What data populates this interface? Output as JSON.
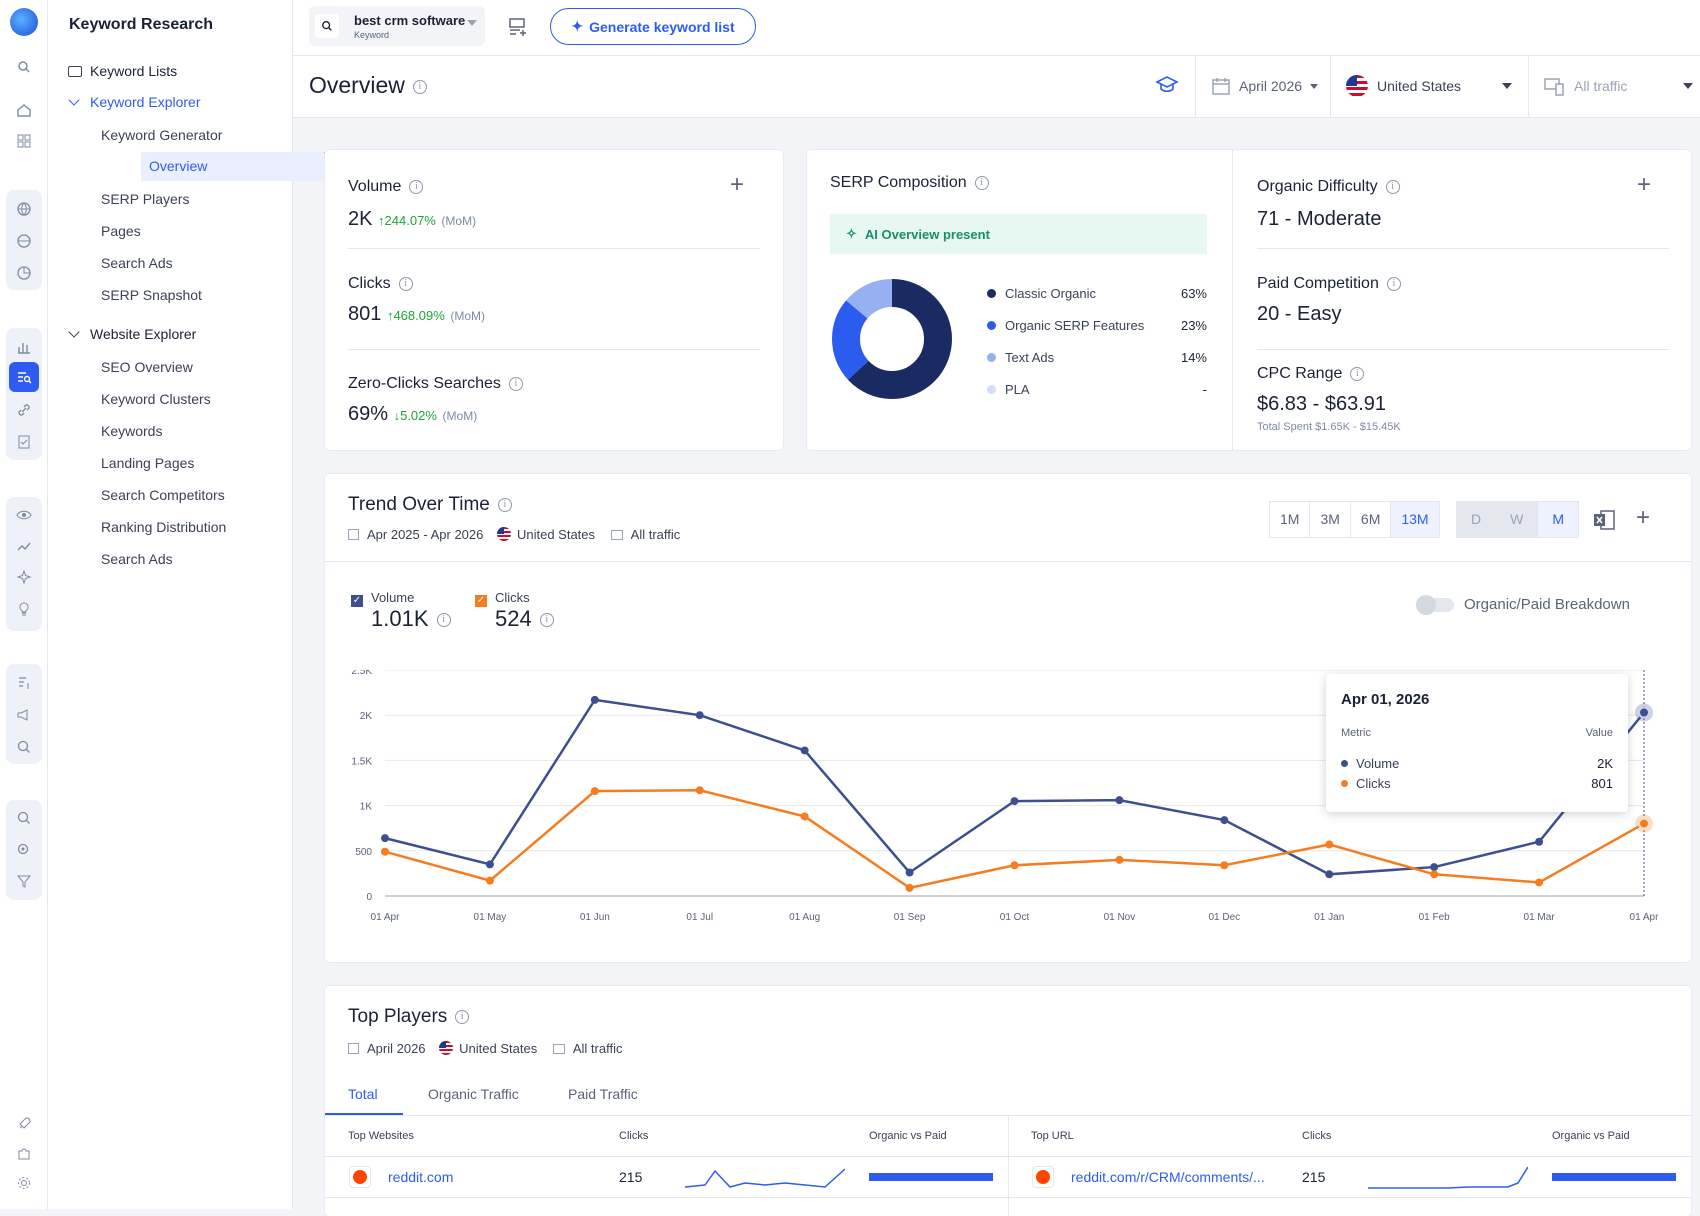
{
  "rail": {
    "icons": [
      "search-icon",
      "home-icon",
      "apps-icon",
      "globe-icon",
      "globe-search-icon",
      "pie-chart-icon",
      "bar-chart-icon",
      "keyword-research-icon",
      "link-icon",
      "checklist-icon",
      "eye-icon",
      "trend-icon",
      "sparkle-icon",
      "lightbulb-icon",
      "document-dollar-icon",
      "megaphone-icon",
      "search-ads-icon",
      "magnify-check-icon",
      "magnify-target-icon",
      "filter-icon",
      "rocket-icon",
      "puzzle-icon",
      "settings-icon"
    ]
  },
  "sidebar": {
    "title": "Keyword Research",
    "keyword_lists": "Keyword Lists",
    "keyword_explorer": "Keyword Explorer",
    "ke_items": [
      "Keyword Generator",
      "Overview",
      "SERP Players",
      "Pages",
      "Search Ads",
      "SERP Snapshot"
    ],
    "website_explorer": "Website Explorer",
    "we_items": [
      "SEO Overview",
      "Keyword Clusters",
      "Keywords",
      "Landing Pages",
      "Search Competitors",
      "Ranking Distribution",
      "Search Ads"
    ]
  },
  "topbar": {
    "keyword": "best crm software",
    "keyword_type": "Keyword",
    "generate": "Generate keyword list"
  },
  "header": {
    "title": "Overview",
    "date": "April 2026",
    "country": "United States",
    "traffic": "All traffic"
  },
  "volume": {
    "label": "Volume",
    "value": "2K",
    "change": "244.07%",
    "change_dir": "up",
    "period": "(MoM)"
  },
  "clicks": {
    "label": "Clicks",
    "value": "801",
    "change": "468.09%",
    "change_dir": "up",
    "period": "(MoM)"
  },
  "zero": {
    "label": "Zero-Clicks Searches",
    "value": "69%",
    "change": "5.02%",
    "change_dir": "down",
    "period": "(MoM)"
  },
  "serp": {
    "title": "SERP Composition",
    "ai": "AI Overview present",
    "items": [
      {
        "name": "Classic Organic",
        "pct": "63%",
        "value": 63,
        "color": "#1a2b63"
      },
      {
        "name": "Organic SERP Features",
        "pct": "23%",
        "value": 23,
        "color": "#2b5cf0"
      },
      {
        "name": "Text Ads",
        "pct": "14%",
        "value": 14,
        "color": "#97b0f4"
      },
      {
        "name": "PLA",
        "pct": "-",
        "value": 0,
        "color": "#d3defb"
      }
    ]
  },
  "difficulty": {
    "label": "Organic Difficulty",
    "value": "71 - Moderate"
  },
  "paid": {
    "label": "Paid Competition",
    "value": "20 - Easy"
  },
  "cpc": {
    "label": "CPC Range",
    "value": "$6.83 - $63.91",
    "spent": "Total Spent $1.65K - $15.45K"
  },
  "trend": {
    "title": "Trend Over Time",
    "range": "Apr 2025 - Apr 2026",
    "country": "United States",
    "traffic": "All traffic",
    "periods": [
      "1M",
      "3M",
      "6M",
      "13M"
    ],
    "granularity": [
      "D",
      "W",
      "M"
    ],
    "vol_label": "Volume",
    "vol_value": "1.01K",
    "clk_label": "Clicks",
    "clk_value": "524",
    "breakdown": "Organic/Paid Breakdown",
    "tooltip": {
      "date": "Apr 01, 2026",
      "metric": "Metric",
      "value": "Value",
      "vol": "Volume",
      "vol_v": "2K",
      "clk": "Clicks",
      "clk_v": "801"
    }
  },
  "chart_data": {
    "type": "line",
    "x": [
      "01 Apr",
      "01 May",
      "01 Jun",
      "01 Jul",
      "01 Aug",
      "01 Sep",
      "01 Oct",
      "01 Nov",
      "01 Dec",
      "01 Jan",
      "01 Feb",
      "01 Mar",
      "01 Apr"
    ],
    "y_ticks": [
      "0",
      "500",
      "1K",
      "1.5K",
      "2K",
      "2.5K"
    ],
    "ylim": [
      0,
      2500
    ],
    "series": [
      {
        "name": "Volume",
        "color": "#3d4f8f",
        "values": [
          640,
          350,
          2170,
          2000,
          1610,
          260,
          1050,
          1060,
          840,
          240,
          320,
          600,
          2030
        ]
      },
      {
        "name": "Clicks",
        "color": "#f57c1f",
        "values": [
          490,
          170,
          1160,
          1170,
          880,
          90,
          340,
          400,
          340,
          570,
          240,
          150,
          801
        ]
      }
    ],
    "grid": true
  },
  "top": {
    "title": "Top Players",
    "date": "April 2026",
    "country": "United States",
    "traffic": "All traffic",
    "tabs": [
      "Total",
      "Organic Traffic",
      "Paid Traffic"
    ],
    "left_head": [
      "Top Websites",
      "Clicks",
      "Organic vs Paid"
    ],
    "right_head": [
      "Top URL",
      "Clicks",
      "Organic vs Paid"
    ],
    "left_row": {
      "site": "reddit.com",
      "clicks": "215"
    },
    "right_row": {
      "site": "reddit.com/r/CRM/comments/...",
      "clicks": "215"
    }
  }
}
